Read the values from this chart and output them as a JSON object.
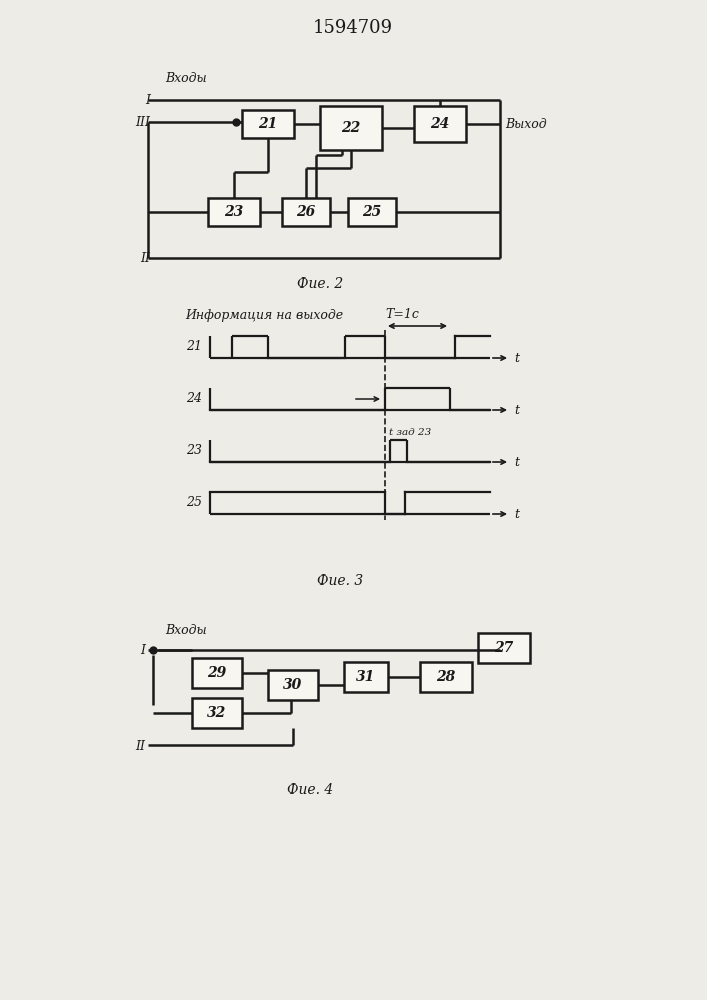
{
  "title": "1594709",
  "fig2_label": "Фие. 2",
  "fig3_label": "Фие. 3",
  "fig4_label": "Фие. 4",
  "bg_color": "#eeece6",
  "line_color": "#1a1a1a",
  "box_color": "#f8f6f0",
  "text_color": "#1a1a1a"
}
